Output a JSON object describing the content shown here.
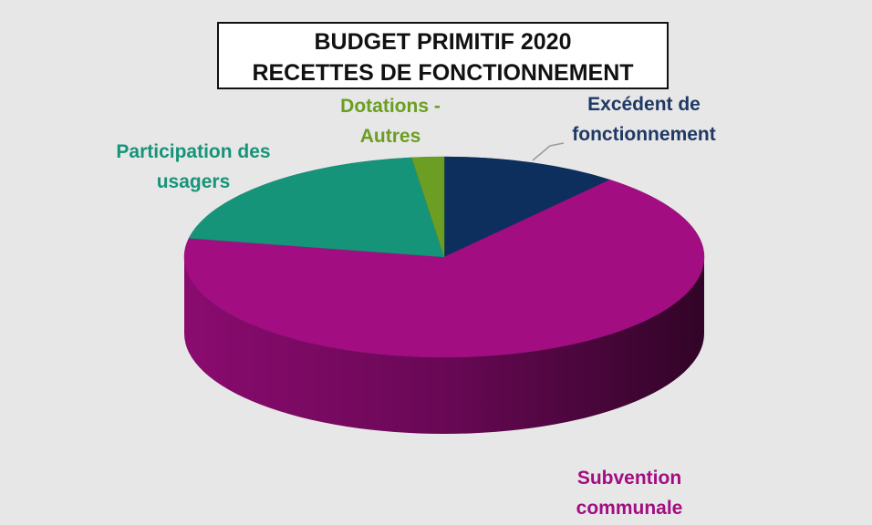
{
  "chart_data": {
    "type": "pie3d",
    "title": [
      "BUDGET PRIMITIF 2020",
      "RECETTES DE FONCTIONNEMENT"
    ],
    "categories": [
      "Excédent de fonctionnement",
      "Subvention communale",
      "Participation des usagers",
      "Dotations - Autres"
    ],
    "values": [
      11,
      67,
      20,
      2
    ],
    "colors": [
      "#0d2f5e",
      "#a20d82",
      "#169479",
      "#6b9e22"
    ]
  }
}
